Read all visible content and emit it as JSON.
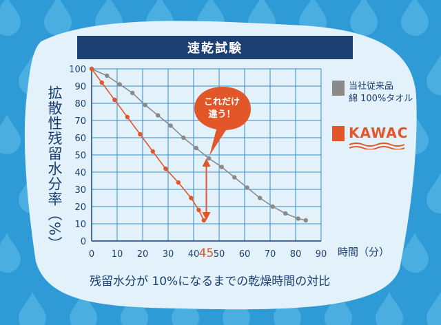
{
  "title": "速乾試験",
  "y_axis_label": "拡散性残留水分率（%）",
  "x_axis_unit": "時間（分）",
  "caption": "残留水分が 10%になるまでの乾燥時間の対比",
  "callout": {
    "line1": "これだけ",
    "line2": "違う！"
  },
  "highlight_tick": "45",
  "colors": {
    "orange": "#e2572a",
    "gray": "#8a8a8a",
    "navy": "#1b3f73",
    "background": "#2f9bd6"
  },
  "chart_data": {
    "type": "line",
    "x_ticks": [
      "0",
      "10",
      "20",
      "30",
      "40",
      "45",
      "50",
      "60",
      "70",
      "80",
      "90"
    ],
    "y_ticks": [
      "0",
      "10",
      "20",
      "30",
      "40",
      "50",
      "60",
      "70",
      "80",
      "90",
      "100"
    ],
    "xlim": [
      0,
      90
    ],
    "ylim": [
      0,
      100
    ],
    "grid": true,
    "legend_position": "right",
    "series": [
      {
        "name": "当社従来品 綿 100%タオル",
        "color": "#8a8a8a",
        "x": [
          0,
          6,
          11,
          16,
          21,
          26,
          31,
          36,
          41,
          46,
          51,
          56,
          61,
          66,
          71,
          76,
          81,
          84
        ],
        "y": [
          100,
          96,
          91,
          86,
          79,
          73,
          67,
          60,
          54,
          48,
          43,
          37,
          31,
          25,
          20,
          16,
          13,
          12
        ]
      },
      {
        "name": "KAWAC",
        "color": "#e2572a",
        "x": [
          0,
          4,
          9,
          14,
          19,
          24,
          29,
          34,
          39,
          42,
          44
        ],
        "y": [
          100,
          92,
          82,
          72,
          62,
          52,
          42,
          34,
          25,
          18,
          12
        ]
      }
    ]
  },
  "legend": {
    "gray_line1": "当社従来品",
    "gray_line2": "綿 100%タオル",
    "orange_label": "KAWAC"
  }
}
